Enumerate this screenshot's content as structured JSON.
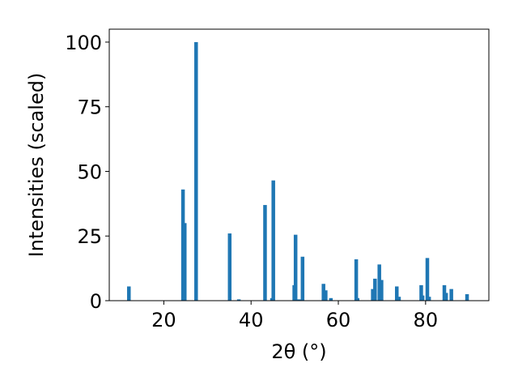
{
  "chart_data": {
    "type": "bar",
    "xlabel": "2θ (°)",
    "ylabel": "Intensities (scaled)",
    "xlim": [
      7.5,
      94.5
    ],
    "ylim": [
      0,
      105
    ],
    "xticks": [
      20,
      40,
      60,
      80
    ],
    "yticks": [
      0,
      25,
      50,
      75,
      100
    ],
    "bar_color": "#1f77b4",
    "grid": false,
    "series": [
      {
        "peaks": [
          {
            "x": 12.0,
            "y": 5.5
          },
          {
            "x": 24.4,
            "y": 43.0
          },
          {
            "x": 24.8,
            "y": 30.0
          },
          {
            "x": 27.4,
            "y": 100.0
          },
          {
            "x": 35.1,
            "y": 26.0
          },
          {
            "x": 37.2,
            "y": 0.5
          },
          {
            "x": 43.2,
            "y": 37.0
          },
          {
            "x": 44.8,
            "y": 1.0
          },
          {
            "x": 45.1,
            "y": 46.5
          },
          {
            "x": 49.9,
            "y": 6.0
          },
          {
            "x": 50.2,
            "y": 25.5
          },
          {
            "x": 51.0,
            "y": 0.5
          },
          {
            "x": 51.8,
            "y": 17.0
          },
          {
            "x": 56.6,
            "y": 6.5
          },
          {
            "x": 57.1,
            "y": 4.0
          },
          {
            "x": 58.3,
            "y": 1.0
          },
          {
            "x": 64.1,
            "y": 16.0
          },
          {
            "x": 64.4,
            "y": 1.0
          },
          {
            "x": 67.9,
            "y": 4.5
          },
          {
            "x": 68.4,
            "y": 8.5
          },
          {
            "x": 69.4,
            "y": 14.0
          },
          {
            "x": 69.9,
            "y": 8.0
          },
          {
            "x": 73.4,
            "y": 5.5
          },
          {
            "x": 73.9,
            "y": 1.5
          },
          {
            "x": 79.0,
            "y": 6.0
          },
          {
            "x": 79.3,
            "y": 2.0
          },
          {
            "x": 80.4,
            "y": 16.5
          },
          {
            "x": 80.8,
            "y": 1.5
          },
          {
            "x": 84.3,
            "y": 6.0
          },
          {
            "x": 84.7,
            "y": 3.0
          },
          {
            "x": 85.9,
            "y": 4.5
          },
          {
            "x": 89.5,
            "y": 2.5
          }
        ]
      }
    ]
  }
}
